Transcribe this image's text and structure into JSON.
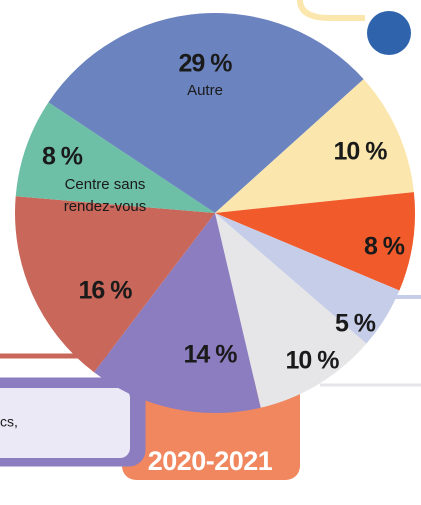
{
  "chart_data": {
    "type": "pie",
    "categories": [
      "Autre",
      null,
      null,
      null,
      null,
      null,
      null,
      "Centre sans rendez-vous"
    ],
    "values": [
      29,
      10,
      8,
      5,
      10,
      14,
      16,
      8
    ],
    "value_labels": [
      "29 %",
      "10 %",
      "8 %",
      "5 %",
      "10 %",
      "14 %",
      "16 %",
      "8 %"
    ],
    "colors": [
      "#6b84bf",
      "#fbe7ae",
      "#f15a2b",
      "#c5cde8",
      "#e6e6e8",
      "#8c7cc0",
      "#c8675a",
      "#6dbfa6"
    ],
    "annotations": [
      "2020-2021",
      "cs,"
    ]
  }
}
